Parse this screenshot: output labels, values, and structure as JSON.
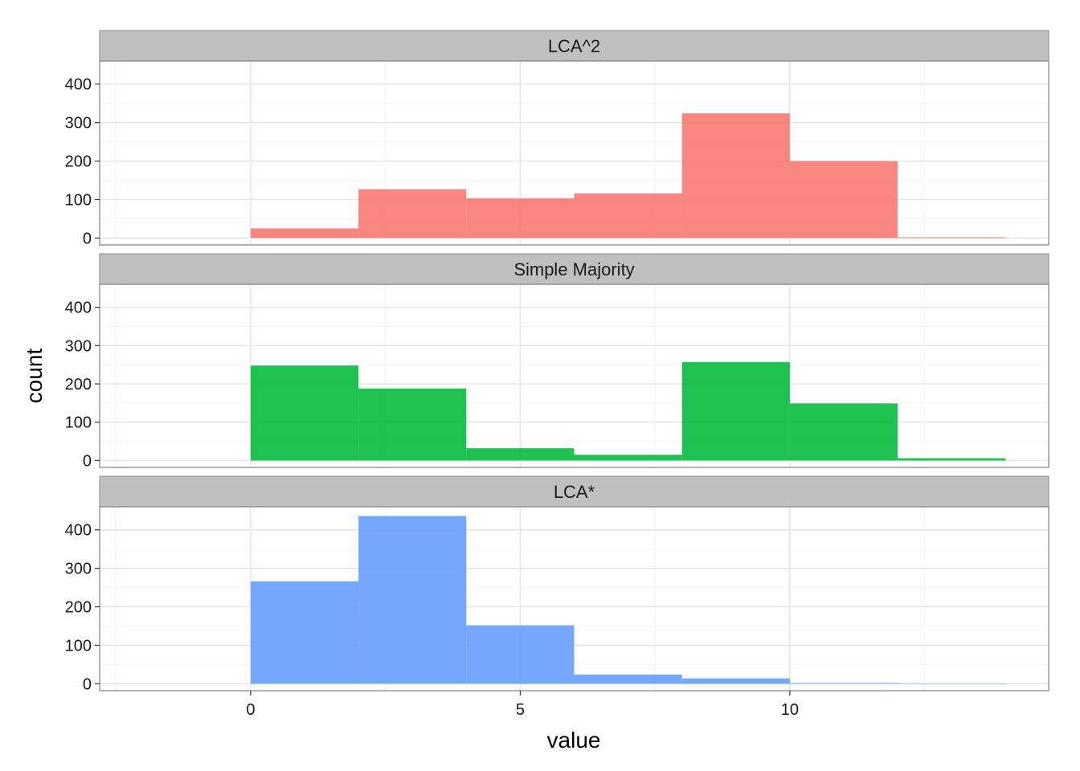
{
  "chart_data": {
    "type": "bar",
    "subtype": "faceted-histogram",
    "xlabel": "value",
    "ylabel": "count",
    "xlim": [
      -2.8,
      14.8
    ],
    "ylim": [
      -18,
      460
    ],
    "x_ticks": [
      0,
      5,
      10
    ],
    "y_ticks": [
      0,
      100,
      200,
      300,
      400
    ],
    "grid": true,
    "legend": "none",
    "bin_edges": [
      0,
      2,
      4,
      6,
      8,
      10,
      12,
      14
    ],
    "panels": [
      {
        "name": "LCA^2",
        "color": "#F8766D",
        "values": [
          25,
          127,
          103,
          116,
          324,
          200,
          2
        ]
      },
      {
        "name": "Simple Majority",
        "color": "#00BA38",
        "values": [
          248,
          188,
          32,
          15,
          257,
          149,
          6
        ]
      },
      {
        "name": "LCA*",
        "color": "#619CFF",
        "values": [
          266,
          436,
          152,
          24,
          14,
          2,
          0
        ]
      }
    ]
  }
}
